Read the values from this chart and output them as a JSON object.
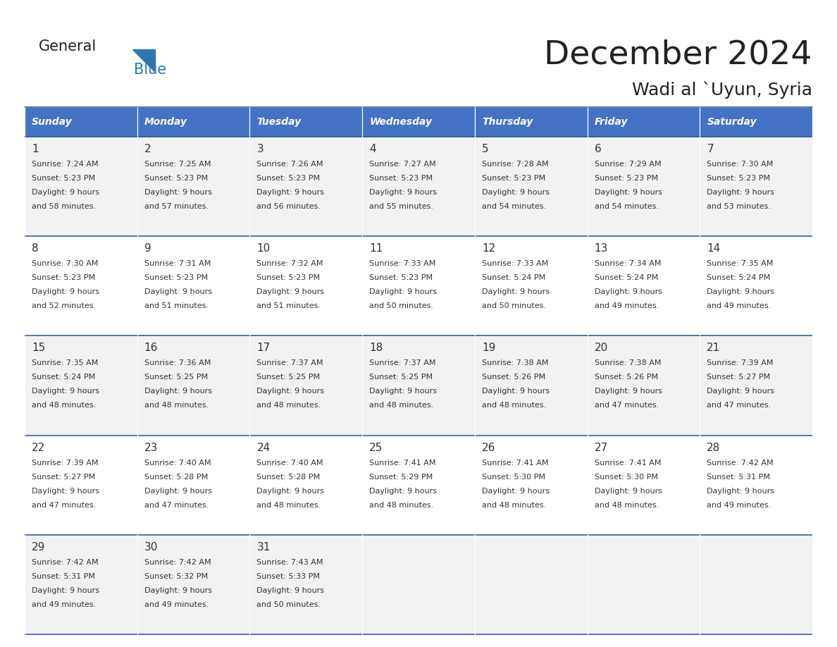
{
  "title": "December 2024",
  "subtitle": "Wadi al `Uyun, Syria",
  "header_bg": "#4472C4",
  "header_text_color": "#FFFFFF",
  "row_colors": [
    "#F2F2F2",
    "#FFFFFF",
    "#F2F2F2",
    "#FFFFFF",
    "#F2F2F2"
  ],
  "separator_color": "#3A5F9F",
  "day_names": [
    "Sunday",
    "Monday",
    "Tuesday",
    "Wednesday",
    "Thursday",
    "Friday",
    "Saturday"
  ],
  "days": [
    {
      "day": 1,
      "col": 0,
      "row": 0,
      "sunrise": "7:24 AM",
      "sunset": "5:23 PM",
      "daylight_line1": "9 hours",
      "daylight_line2": "and 58 minutes."
    },
    {
      "day": 2,
      "col": 1,
      "row": 0,
      "sunrise": "7:25 AM",
      "sunset": "5:23 PM",
      "daylight_line1": "9 hours",
      "daylight_line2": "and 57 minutes."
    },
    {
      "day": 3,
      "col": 2,
      "row": 0,
      "sunrise": "7:26 AM",
      "sunset": "5:23 PM",
      "daylight_line1": "9 hours",
      "daylight_line2": "and 56 minutes."
    },
    {
      "day": 4,
      "col": 3,
      "row": 0,
      "sunrise": "7:27 AM",
      "sunset": "5:23 PM",
      "daylight_line1": "9 hours",
      "daylight_line2": "and 55 minutes."
    },
    {
      "day": 5,
      "col": 4,
      "row": 0,
      "sunrise": "7:28 AM",
      "sunset": "5:23 PM",
      "daylight_line1": "9 hours",
      "daylight_line2": "and 54 minutes."
    },
    {
      "day": 6,
      "col": 5,
      "row": 0,
      "sunrise": "7:29 AM",
      "sunset": "5:23 PM",
      "daylight_line1": "9 hours",
      "daylight_line2": "and 54 minutes."
    },
    {
      "day": 7,
      "col": 6,
      "row": 0,
      "sunrise": "7:30 AM",
      "sunset": "5:23 PM",
      "daylight_line1": "9 hours",
      "daylight_line2": "and 53 minutes."
    },
    {
      "day": 8,
      "col": 0,
      "row": 1,
      "sunrise": "7:30 AM",
      "sunset": "5:23 PM",
      "daylight_line1": "9 hours",
      "daylight_line2": "and 52 minutes."
    },
    {
      "day": 9,
      "col": 1,
      "row": 1,
      "sunrise": "7:31 AM",
      "sunset": "5:23 PM",
      "daylight_line1": "9 hours",
      "daylight_line2": "and 51 minutes."
    },
    {
      "day": 10,
      "col": 2,
      "row": 1,
      "sunrise": "7:32 AM",
      "sunset": "5:23 PM",
      "daylight_line1": "9 hours",
      "daylight_line2": "and 51 minutes."
    },
    {
      "day": 11,
      "col": 3,
      "row": 1,
      "sunrise": "7:33 AM",
      "sunset": "5:23 PM",
      "daylight_line1": "9 hours",
      "daylight_line2": "and 50 minutes."
    },
    {
      "day": 12,
      "col": 4,
      "row": 1,
      "sunrise": "7:33 AM",
      "sunset": "5:24 PM",
      "daylight_line1": "9 hours",
      "daylight_line2": "and 50 minutes."
    },
    {
      "day": 13,
      "col": 5,
      "row": 1,
      "sunrise": "7:34 AM",
      "sunset": "5:24 PM",
      "daylight_line1": "9 hours",
      "daylight_line2": "and 49 minutes."
    },
    {
      "day": 14,
      "col": 6,
      "row": 1,
      "sunrise": "7:35 AM",
      "sunset": "5:24 PM",
      "daylight_line1": "9 hours",
      "daylight_line2": "and 49 minutes."
    },
    {
      "day": 15,
      "col": 0,
      "row": 2,
      "sunrise": "7:35 AM",
      "sunset": "5:24 PM",
      "daylight_line1": "9 hours",
      "daylight_line2": "and 48 minutes."
    },
    {
      "day": 16,
      "col": 1,
      "row": 2,
      "sunrise": "7:36 AM",
      "sunset": "5:25 PM",
      "daylight_line1": "9 hours",
      "daylight_line2": "and 48 minutes."
    },
    {
      "day": 17,
      "col": 2,
      "row": 2,
      "sunrise": "7:37 AM",
      "sunset": "5:25 PM",
      "daylight_line1": "9 hours",
      "daylight_line2": "and 48 minutes."
    },
    {
      "day": 18,
      "col": 3,
      "row": 2,
      "sunrise": "7:37 AM",
      "sunset": "5:25 PM",
      "daylight_line1": "9 hours",
      "daylight_line2": "and 48 minutes."
    },
    {
      "day": 19,
      "col": 4,
      "row": 2,
      "sunrise": "7:38 AM",
      "sunset": "5:26 PM",
      "daylight_line1": "9 hours",
      "daylight_line2": "and 48 minutes."
    },
    {
      "day": 20,
      "col": 5,
      "row": 2,
      "sunrise": "7:38 AM",
      "sunset": "5:26 PM",
      "daylight_line1": "9 hours",
      "daylight_line2": "and 47 minutes."
    },
    {
      "day": 21,
      "col": 6,
      "row": 2,
      "sunrise": "7:39 AM",
      "sunset": "5:27 PM",
      "daylight_line1": "9 hours",
      "daylight_line2": "and 47 minutes."
    },
    {
      "day": 22,
      "col": 0,
      "row": 3,
      "sunrise": "7:39 AM",
      "sunset": "5:27 PM",
      "daylight_line1": "9 hours",
      "daylight_line2": "and 47 minutes."
    },
    {
      "day": 23,
      "col": 1,
      "row": 3,
      "sunrise": "7:40 AM",
      "sunset": "5:28 PM",
      "daylight_line1": "9 hours",
      "daylight_line2": "and 47 minutes."
    },
    {
      "day": 24,
      "col": 2,
      "row": 3,
      "sunrise": "7:40 AM",
      "sunset": "5:28 PM",
      "daylight_line1": "9 hours",
      "daylight_line2": "and 48 minutes."
    },
    {
      "day": 25,
      "col": 3,
      "row": 3,
      "sunrise": "7:41 AM",
      "sunset": "5:29 PM",
      "daylight_line1": "9 hours",
      "daylight_line2": "and 48 minutes."
    },
    {
      "day": 26,
      "col": 4,
      "row": 3,
      "sunrise": "7:41 AM",
      "sunset": "5:30 PM",
      "daylight_line1": "9 hours",
      "daylight_line2": "and 48 minutes."
    },
    {
      "day": 27,
      "col": 5,
      "row": 3,
      "sunrise": "7:41 AM",
      "sunset": "5:30 PM",
      "daylight_line1": "9 hours",
      "daylight_line2": "and 48 minutes."
    },
    {
      "day": 28,
      "col": 6,
      "row": 3,
      "sunrise": "7:42 AM",
      "sunset": "5:31 PM",
      "daylight_line1": "9 hours",
      "daylight_line2": "and 49 minutes."
    },
    {
      "day": 29,
      "col": 0,
      "row": 4,
      "sunrise": "7:42 AM",
      "sunset": "5:31 PM",
      "daylight_line1": "9 hours",
      "daylight_line2": "and 49 minutes."
    },
    {
      "day": 30,
      "col": 1,
      "row": 4,
      "sunrise": "7:42 AM",
      "sunset": "5:32 PM",
      "daylight_line1": "9 hours",
      "daylight_line2": "and 49 minutes."
    },
    {
      "day": 31,
      "col": 2,
      "row": 4,
      "sunrise": "7:43 AM",
      "sunset": "5:33 PM",
      "daylight_line1": "9 hours",
      "daylight_line2": "and 50 minutes."
    }
  ],
  "num_rows": 5,
  "num_cols": 7,
  "logo_general_color": "#222222",
  "logo_blue_color": "#2E75B6",
  "title_color": "#222222",
  "subtitle_color": "#222222",
  "text_color": "#333333"
}
